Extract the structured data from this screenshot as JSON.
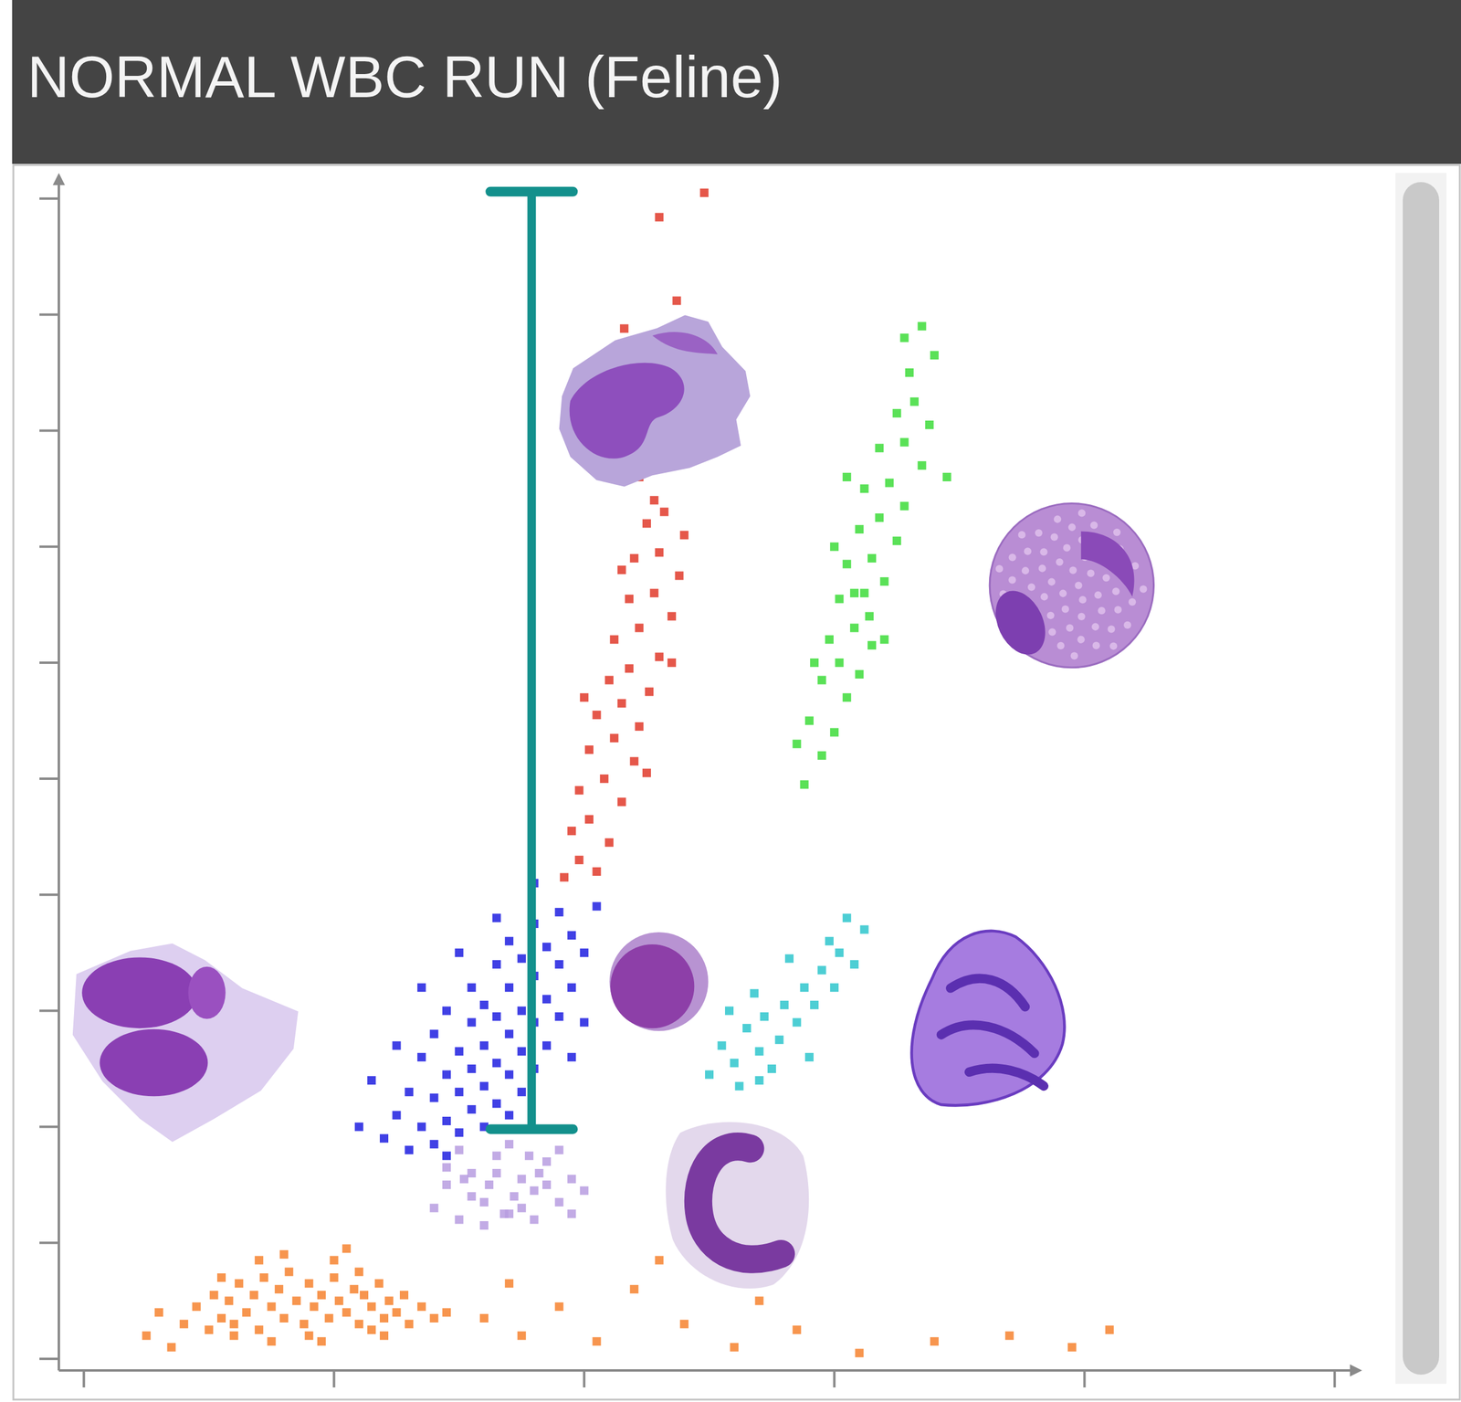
{
  "chart_data": {
    "type": "scatter",
    "title": "NORMAL WBC RUN (Feline)",
    "xlim": [
      -0.1,
      5.1
    ],
    "ylim": [
      -0.1,
      10.2
    ],
    "xticks": [
      0,
      1,
      2,
      3,
      4,
      5
    ],
    "yticks": [
      0,
      1,
      2,
      3,
      4,
      5,
      6,
      7,
      8,
      9,
      10
    ],
    "tick_labels": false,
    "grid": false,
    "marker": "square",
    "series": [
      {
        "color": "#f6822f",
        "x": [
          0.4,
          0.45,
          0.5,
          0.52,
          0.55,
          0.58,
          0.6,
          0.62,
          0.65,
          0.68,
          0.7,
          0.72,
          0.75,
          0.78,
          0.8,
          0.82,
          0.85,
          0.88,
          0.9,
          0.92,
          0.95,
          0.98,
          1.0,
          1.02,
          1.05,
          1.08,
          1.1,
          1.12,
          1.15,
          1.18,
          1.2,
          1.22,
          1.25,
          1.28,
          1.3,
          1.35,
          1.4,
          1.45,
          0.6,
          0.7,
          0.8,
          0.9,
          1.0,
          1.1,
          1.2,
          0.75,
          0.95,
          1.15,
          0.55,
          1.05,
          1.6,
          1.75,
          1.9,
          2.05,
          2.2,
          2.4,
          2.6,
          2.85,
          3.1,
          3.4,
          3.7,
          3.95,
          4.1,
          1.7,
          2.3,
          2.7,
          0.3,
          0.25,
          0.35
        ],
        "values": [
          0.3,
          0.45,
          0.25,
          0.55,
          0.35,
          0.5,
          0.3,
          0.65,
          0.4,
          0.55,
          0.25,
          0.7,
          0.45,
          0.6,
          0.35,
          0.75,
          0.5,
          0.3,
          0.65,
          0.45,
          0.55,
          0.35,
          0.7,
          0.5,
          0.4,
          0.6,
          0.3,
          0.55,
          0.45,
          0.65,
          0.35,
          0.5,
          0.4,
          0.55,
          0.3,
          0.45,
          0.35,
          0.4,
          0.2,
          0.85,
          0.9,
          0.2,
          0.85,
          0.75,
          0.2,
          0.15,
          0.15,
          0.25,
          0.7,
          0.95,
          0.35,
          0.2,
          0.45,
          0.15,
          0.6,
          0.3,
          0.1,
          0.25,
          0.05,
          0.15,
          0.2,
          0.1,
          0.25,
          0.65,
          0.85,
          0.5,
          0.4,
          0.2,
          0.1
        ]
      },
      {
        "color": "#b79ce0",
        "x": [
          1.4,
          1.45,
          1.5,
          1.55,
          1.6,
          1.65,
          1.7,
          1.75,
          1.8,
          1.85,
          1.9,
          1.95,
          2.0,
          1.5,
          1.6,
          1.7,
          1.8,
          1.9,
          1.55,
          1.65,
          1.75,
          1.85,
          1.45,
          1.95,
          1.62,
          1.72,
          1.82,
          1.52,
          1.68,
          1.78
        ],
        "values": [
          1.3,
          1.5,
          1.2,
          1.6,
          1.35,
          1.75,
          1.25,
          1.55,
          1.45,
          1.7,
          1.35,
          1.55,
          1.45,
          1.8,
          1.15,
          1.85,
          1.2,
          1.8,
          1.4,
          1.6,
          1.3,
          1.5,
          1.65,
          1.25,
          1.5,
          1.4,
          1.6,
          1.55,
          1.25,
          1.75
        ]
      },
      {
        "color": "#1f1fe0",
        "x": [
          1.2,
          1.25,
          1.3,
          1.3,
          1.35,
          1.35,
          1.4,
          1.4,
          1.4,
          1.45,
          1.45,
          1.45,
          1.5,
          1.5,
          1.5,
          1.55,
          1.55,
          1.55,
          1.55,
          1.6,
          1.6,
          1.6,
          1.6,
          1.65,
          1.65,
          1.65,
          1.65,
          1.7,
          1.7,
          1.7,
          1.7,
          1.7,
          1.75,
          1.75,
          1.75,
          1.75,
          1.8,
          1.8,
          1.8,
          1.8,
          1.85,
          1.85,
          1.85,
          1.9,
          1.9,
          1.9,
          1.95,
          1.95,
          2.0,
          2.05,
          1.15,
          1.1,
          1.25,
          1.35,
          1.5,
          1.65,
          1.8,
          1.95,
          2.0,
          1.45
        ],
        "values": [
          1.9,
          2.1,
          1.8,
          2.3,
          2.0,
          2.6,
          1.85,
          2.25,
          2.8,
          2.05,
          2.45,
          3.0,
          1.95,
          2.3,
          2.65,
          2.15,
          2.5,
          2.9,
          3.2,
          2.0,
          2.35,
          2.7,
          3.05,
          2.2,
          2.55,
          2.95,
          3.4,
          2.1,
          2.45,
          2.8,
          3.2,
          3.6,
          2.3,
          2.65,
          3.0,
          3.45,
          2.5,
          2.9,
          3.3,
          3.75,
          2.7,
          3.1,
          3.55,
          2.95,
          3.4,
          3.85,
          3.2,
          3.65,
          3.5,
          3.9,
          2.4,
          2.0,
          2.7,
          3.2,
          3.5,
          3.8,
          4.1,
          2.6,
          2.9,
          1.75
        ]
      },
      {
        "color": "#e03a2a",
        "x": [
          1.92,
          1.98,
          2.05,
          1.95,
          2.02,
          2.1,
          1.98,
          2.08,
          2.15,
          2.02,
          2.12,
          2.2,
          2.05,
          2.15,
          2.22,
          2.1,
          2.18,
          2.26,
          2.12,
          2.22,
          2.3,
          2.18,
          2.28,
          2.35,
          2.2,
          2.3,
          2.38,
          2.25,
          2.32,
          2.28,
          2.0,
          2.25,
          2.35,
          2.15,
          2.4,
          2.16,
          2.37,
          2.22,
          2.3,
          2.48
        ],
        "values": [
          4.15,
          4.3,
          4.2,
          4.55,
          4.65,
          4.45,
          4.9,
          5.0,
          4.8,
          5.25,
          5.35,
          5.15,
          5.55,
          5.65,
          5.45,
          5.85,
          5.95,
          5.75,
          6.2,
          6.3,
          6.05,
          6.55,
          6.6,
          6.4,
          6.9,
          6.95,
          6.75,
          7.2,
          7.3,
          7.4,
          5.7,
          5.05,
          6.0,
          6.8,
          7.1,
          8.88,
          9.12,
          7.6,
          9.84,
          10.05
        ]
      },
      {
        "color": "#3ddc3a",
        "x": [
          2.88,
          2.95,
          2.9,
          3.0,
          3.05,
          2.95,
          3.02,
          3.1,
          2.98,
          3.08,
          3.15,
          3.02,
          3.12,
          3.05,
          3.15,
          3.2,
          3.1,
          3.18,
          3.25,
          3.12,
          3.22,
          3.28,
          3.18,
          3.28,
          3.35,
          3.25,
          3.32,
          3.38,
          3.3,
          3.4,
          3.0,
          3.2,
          2.92,
          3.35,
          3.28,
          3.45,
          3.05,
          3.08,
          3.14,
          2.85
        ],
        "values": [
          4.95,
          5.2,
          5.5,
          5.4,
          5.7,
          5.85,
          6.0,
          5.9,
          6.2,
          6.3,
          6.15,
          6.55,
          6.6,
          6.85,
          6.9,
          6.7,
          7.15,
          7.25,
          7.05,
          7.5,
          7.55,
          7.35,
          7.85,
          7.9,
          7.7,
          8.15,
          8.25,
          8.05,
          8.5,
          8.65,
          7.0,
          6.2,
          6.0,
          8.9,
          8.8,
          7.6,
          7.6,
          6.6,
          6.4,
          5.3
        ]
      },
      {
        "color": "#2ec6cc",
        "x": [
          2.5,
          2.55,
          2.6,
          2.65,
          2.7,
          2.72,
          2.78,
          2.8,
          2.85,
          2.88,
          2.92,
          2.95,
          3.0,
          3.02,
          3.08,
          3.12,
          2.62,
          2.75,
          2.58,
          2.9,
          3.05,
          2.68,
          2.82,
          2.98,
          2.7
        ],
        "values": [
          2.45,
          2.7,
          2.55,
          2.85,
          2.65,
          2.95,
          2.75,
          3.05,
          2.9,
          3.2,
          3.05,
          3.35,
          3.2,
          3.5,
          3.4,
          3.7,
          2.35,
          2.5,
          3.0,
          2.6,
          3.8,
          3.15,
          3.45,
          3.6,
          2.4
        ]
      }
    ],
    "annotations": [
      {
        "type": "range",
        "x": 1.79,
        "y": [
          1.98,
          10.06
        ],
        "color": "#13908c"
      }
    ]
  }
}
